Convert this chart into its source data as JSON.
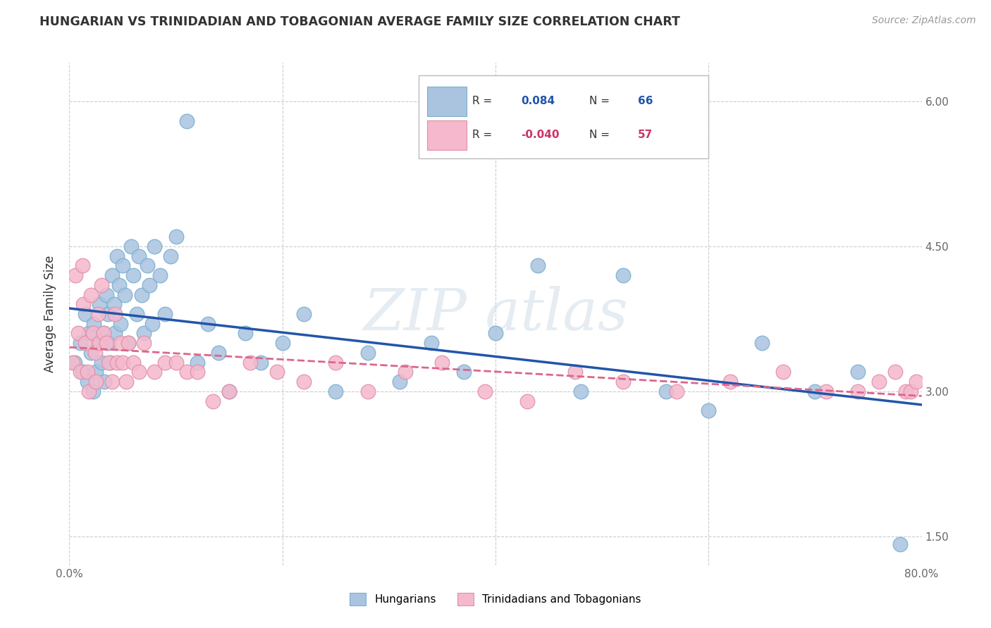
{
  "title": "HUNGARIAN VS TRINIDADIAN AND TOBAGONIAN AVERAGE FAMILY SIZE CORRELATION CHART",
  "source": "Source: ZipAtlas.com",
  "ylabel": "Average Family Size",
  "xlabel": "",
  "xlim": [
    0.0,
    0.8
  ],
  "ylim": [
    1.2,
    6.4
  ],
  "yticks": [
    1.5,
    3.0,
    4.5,
    6.0
  ],
  "xticks": [
    0.0,
    0.2,
    0.4,
    0.6,
    0.8
  ],
  "xticklabels": [
    "0.0%",
    "",
    "",
    "",
    "80.0%"
  ],
  "background_color": "#ffffff",
  "grid_color": "#cccccc",
  "hungarian_color": "#aac4e0",
  "hungarian_edge_color": "#7aafd0",
  "hungarian_line_color": "#2255aa",
  "trinidadian_color": "#f5b8cc",
  "trinidadian_edge_color": "#e090aa",
  "trinidadian_line_color": "#dd6688",
  "legend_R_hungarian": "0.084",
  "legend_N_hungarian": "66",
  "legend_R_trinidadian": "-0.040",
  "legend_N_trinidadian": "57",
  "hungarian_scatter_x": [
    0.005,
    0.01,
    0.012,
    0.015,
    0.017,
    0.018,
    0.02,
    0.022,
    0.023,
    0.025,
    0.027,
    0.028,
    0.03,
    0.032,
    0.033,
    0.035,
    0.036,
    0.037,
    0.038,
    0.04,
    0.042,
    0.043,
    0.045,
    0.047,
    0.048,
    0.05,
    0.052,
    0.055,
    0.058,
    0.06,
    0.063,
    0.065,
    0.068,
    0.07,
    0.073,
    0.075,
    0.078,
    0.08,
    0.085,
    0.09,
    0.095,
    0.1,
    0.11,
    0.12,
    0.13,
    0.14,
    0.15,
    0.165,
    0.18,
    0.2,
    0.22,
    0.25,
    0.28,
    0.31,
    0.34,
    0.37,
    0.4,
    0.44,
    0.48,
    0.52,
    0.56,
    0.6,
    0.65,
    0.7,
    0.74,
    0.78
  ],
  "hungarian_scatter_y": [
    3.3,
    3.5,
    3.2,
    3.8,
    3.1,
    3.6,
    3.4,
    3.0,
    3.7,
    3.2,
    3.5,
    3.9,
    3.3,
    3.6,
    3.1,
    4.0,
    3.8,
    3.5,
    3.3,
    4.2,
    3.9,
    3.6,
    4.4,
    4.1,
    3.7,
    4.3,
    4.0,
    3.5,
    4.5,
    4.2,
    3.8,
    4.4,
    4.0,
    3.6,
    4.3,
    4.1,
    3.7,
    4.5,
    4.2,
    3.8,
    4.4,
    4.6,
    5.8,
    3.3,
    3.7,
    3.4,
    3.0,
    3.6,
    3.3,
    3.5,
    3.8,
    3.0,
    3.4,
    3.1,
    3.5,
    3.2,
    3.6,
    4.3,
    3.0,
    4.2,
    3.0,
    2.8,
    3.5,
    3.0,
    3.2,
    1.42
  ],
  "trinidadian_scatter_x": [
    0.003,
    0.006,
    0.008,
    0.01,
    0.012,
    0.013,
    0.015,
    0.017,
    0.018,
    0.02,
    0.022,
    0.024,
    0.025,
    0.027,
    0.028,
    0.03,
    0.032,
    0.035,
    0.037,
    0.04,
    0.043,
    0.045,
    0.048,
    0.05,
    0.053,
    0.055,
    0.06,
    0.065,
    0.07,
    0.08,
    0.09,
    0.1,
    0.11,
    0.12,
    0.135,
    0.15,
    0.17,
    0.195,
    0.22,
    0.25,
    0.28,
    0.315,
    0.35,
    0.39,
    0.43,
    0.475,
    0.52,
    0.57,
    0.62,
    0.67,
    0.71,
    0.74,
    0.76,
    0.775,
    0.785,
    0.79,
    0.795
  ],
  "trinidadian_scatter_y": [
    3.3,
    4.2,
    3.6,
    3.2,
    4.3,
    3.9,
    3.5,
    3.2,
    3.0,
    4.0,
    3.6,
    3.4,
    3.1,
    3.8,
    3.5,
    4.1,
    3.6,
    3.5,
    3.3,
    3.1,
    3.8,
    3.3,
    3.5,
    3.3,
    3.1,
    3.5,
    3.3,
    3.2,
    3.5,
    3.2,
    3.3,
    3.3,
    3.2,
    3.2,
    2.9,
    3.0,
    3.3,
    3.2,
    3.1,
    3.3,
    3.0,
    3.2,
    3.3,
    3.0,
    2.9,
    3.2,
    3.1,
    3.0,
    3.1,
    3.2,
    3.0,
    3.0,
    3.1,
    3.2,
    3.0,
    3.0,
    3.1
  ]
}
